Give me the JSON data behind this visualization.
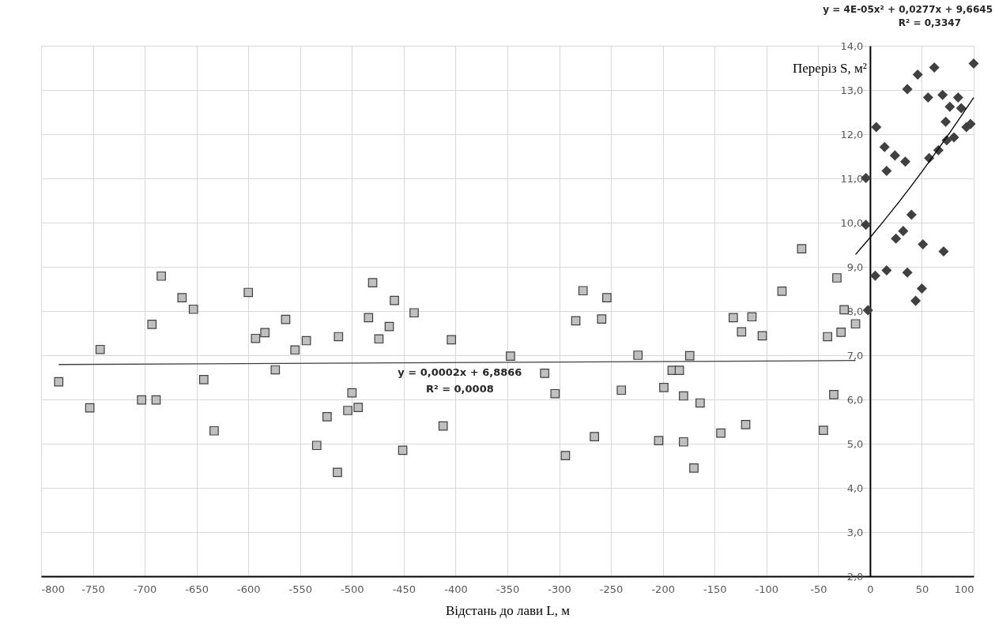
{
  "chart_data": {
    "type": "scatter",
    "xlabel": "Відстань до лави L, м",
    "ylabel": "Переріз S, м²",
    "xlim": [
      -800,
      100
    ],
    "xticks": [
      -800,
      -750,
      -700,
      -650,
      -600,
      -550,
      -500,
      -450,
      -400,
      -350,
      -300,
      -250,
      -200,
      -150,
      -100,
      -50,
      0,
      50,
      100
    ],
    "ylim": [
      2,
      14
    ],
    "yticks": [
      {
        "value": 2,
        "label": "2,0"
      },
      {
        "value": 3,
        "label": "3,0"
      },
      {
        "value": 4,
        "label": "4,0"
      },
      {
        "value": 5,
        "label": "5,0"
      },
      {
        "value": 6,
        "label": "6,0"
      },
      {
        "value": 7,
        "label": "7,0"
      },
      {
        "value": 8,
        "label": "8,0"
      },
      {
        "value": 9,
        "label": "9,0"
      },
      {
        "value": 10,
        "label": "10,0"
      },
      {
        "value": 11,
        "label": "11,0"
      },
      {
        "value": 12,
        "label": "12,0"
      },
      {
        "value": 13,
        "label": "13,0"
      },
      {
        "value": 14,
        "label": "14,0"
      }
    ],
    "grid": true,
    "series": [
      {
        "type": "scatter",
        "marker": "square",
        "color": "#c0c0c0",
        "x": [
          -783,
          -753,
          -743,
          -703,
          -689,
          -693,
          -684,
          -664,
          -653,
          -643,
          -633,
          -600,
          -593,
          -584,
          -564,
          -574,
          -555,
          -544,
          -534,
          -524,
          -513,
          -514,
          -504,
          -500,
          -494,
          -480,
          -459,
          -484,
          -464,
          -474,
          -440,
          -404,
          -451,
          -412,
          -347,
          -314,
          -304,
          -294,
          -277,
          -254,
          -284,
          -259,
          -266,
          -240,
          -224,
          -199,
          -204,
          -191,
          -184,
          -180,
          -180,
          -174,
          -170,
          -164,
          -144,
          -132,
          -124,
          -120,
          -114,
          -104,
          -85,
          -66,
          -45,
          -41,
          -35,
          -32,
          -28,
          -25,
          -14
        ],
        "values": [
          6.4,
          5.81,
          7.13,
          5.99,
          5.99,
          7.7,
          8.79,
          8.3,
          8.04,
          6.45,
          5.29,
          8.42,
          7.38,
          7.51,
          7.81,
          6.67,
          7.12,
          7.33,
          4.96,
          5.61,
          7.42,
          4.35,
          5.75,
          6.15,
          5.82,
          8.64,
          8.24,
          7.85,
          7.65,
          7.37,
          7.96,
          7.35,
          4.85,
          5.4,
          6.98,
          6.59,
          6.13,
          4.73,
          8.46,
          8.3,
          7.78,
          7.82,
          5.16,
          6.21,
          7.0,
          6.27,
          5.07,
          6.66,
          6.66,
          6.08,
          5.04,
          6.99,
          4.45,
          5.92,
          5.24,
          7.85,
          7.53,
          5.43,
          7.87,
          7.44,
          8.45,
          9.41,
          5.3,
          7.42,
          6.11,
          8.75,
          7.52,
          8.03,
          7.71
        ]
      },
      {
        "type": "scatter",
        "marker": "diamond",
        "color": "#404040",
        "x": [
          -4,
          -4,
          -2,
          6,
          5,
          14,
          16,
          16,
          24,
          25,
          32,
          34,
          36,
          36,
          40,
          44,
          46,
          50,
          51,
          56,
          57,
          62,
          66,
          70,
          71,
          73,
          74,
          77,
          81,
          85,
          88,
          93,
          97,
          100
        ],
        "values": [
          11.01,
          9.95,
          8.02,
          12.16,
          8.8,
          11.71,
          11.17,
          8.92,
          11.52,
          9.64,
          9.81,
          11.38,
          13.02,
          8.87,
          10.18,
          8.23,
          13.35,
          8.51,
          9.51,
          12.83,
          11.46,
          13.51,
          11.64,
          12.89,
          9.35,
          12.28,
          11.86,
          12.62,
          11.93,
          12.83,
          12.59,
          12.16,
          12.23,
          13.6
        ]
      },
      {
        "type": "line",
        "color": "#404040",
        "x": [
          -783,
          -14
        ],
        "values": [
          6.79,
          6.88
        ]
      },
      {
        "type": "line",
        "color": "#000000",
        "x": [
          -14,
          0,
          25,
          50,
          75,
          100
        ],
        "values": [
          9.28,
          9.66,
          10.38,
          11.15,
          11.97,
          12.83
        ]
      }
    ],
    "annotations": [
      "y = 0,0002x + 6,8866",
      "R² = 0,0008",
      "y = 4E-05x² + 0,0277x + 9,6645",
      "R² = 0,3347"
    ]
  }
}
